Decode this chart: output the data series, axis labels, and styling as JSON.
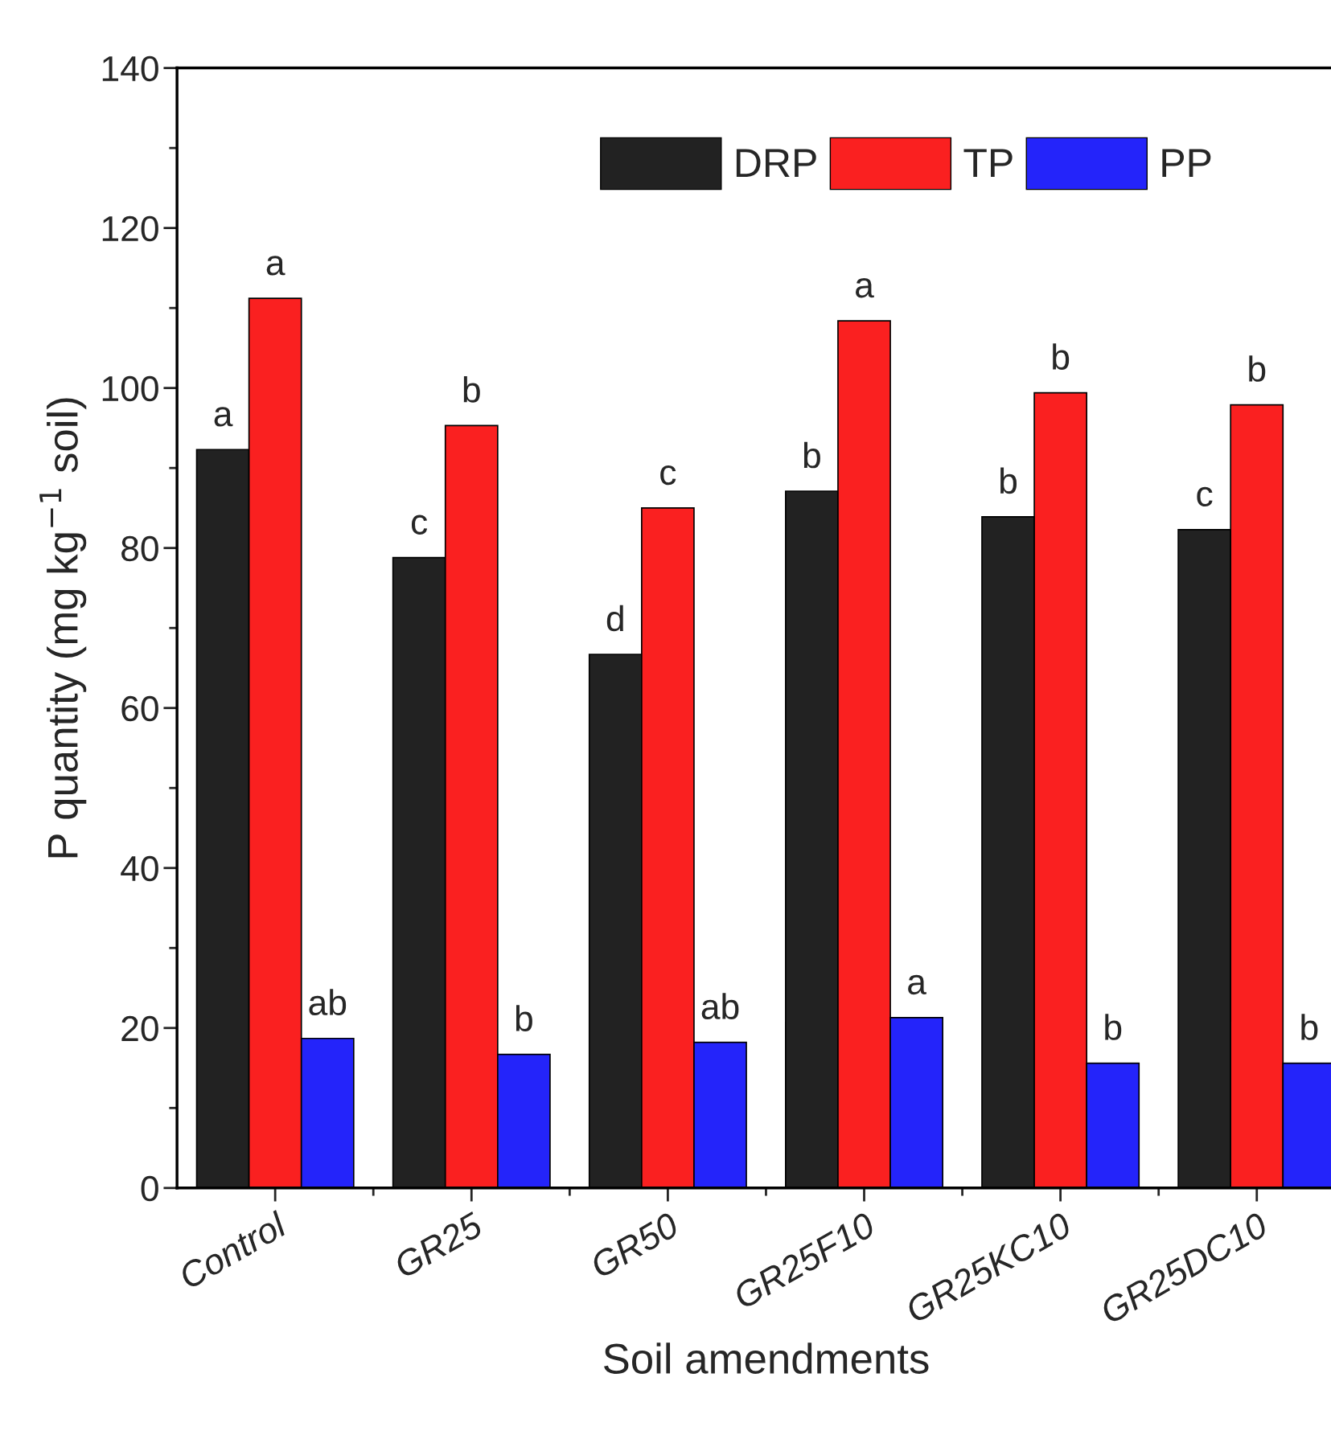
{
  "chart_data": {
    "type": "bar",
    "xlabel": "Soil amendments",
    "ylabel": "P quantity (mg kg$^{−1}$ soil)",
    "categories": [
      "Control",
      "GR25",
      "GR50",
      "GR25F10",
      "GR25KC10",
      "GR25DC10"
    ],
    "series": [
      {
        "name": "DRP",
        "color": "#222222",
        "values": [
          92.3,
          78.8,
          66.7,
          87.1,
          83.9,
          82.3
        ]
      },
      {
        "name": "TP",
        "color": "#fa2020",
        "values": [
          111.2,
          95.3,
          85.0,
          108.4,
          99.4,
          97.9
        ]
      },
      {
        "name": "PP",
        "color": "#2424fa",
        "values": [
          18.7,
          16.7,
          18.2,
          21.3,
          15.6,
          15.6
        ]
      }
    ],
    "ylim": [
      0,
      140
    ],
    "yticks": [
      0,
      20,
      40,
      60,
      80,
      100,
      120,
      140
    ],
    "grid": false,
    "legend": "top right",
    "annotations": [
      "a",
      "a",
      "ab",
      "c",
      "b",
      "b",
      "d",
      "c",
      "ab",
      "b",
      "a",
      "a",
      "b",
      "b",
      "b",
      "c",
      "b",
      "b"
    ]
  }
}
